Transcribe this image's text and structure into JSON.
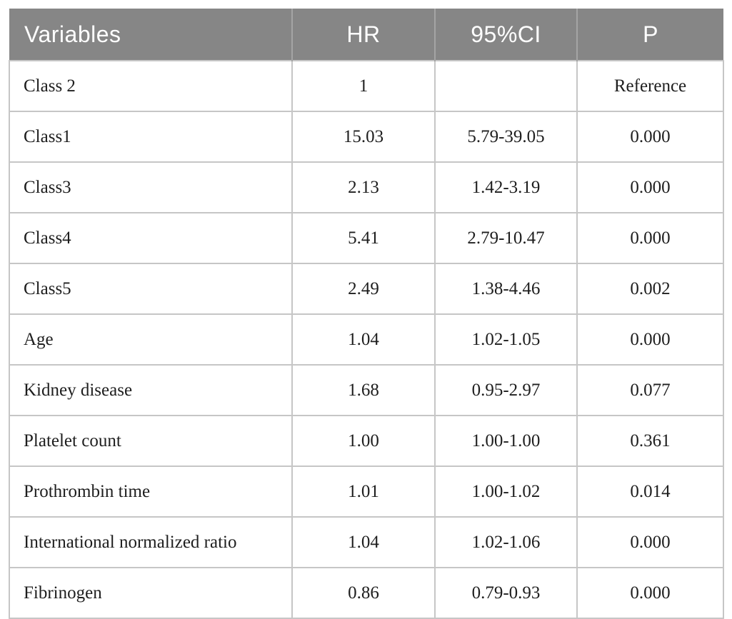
{
  "table": {
    "name": "cox-regression-results",
    "columns": [
      {
        "label": "Variables"
      },
      {
        "label": "HR"
      },
      {
        "label": "95%CI"
      },
      {
        "label": "P"
      }
    ],
    "rows": [
      {
        "variable": "Class 2",
        "hr": "1",
        "ci": "",
        "p": "Reference"
      },
      {
        "variable": "Class1",
        "hr": "15.03",
        "ci": "5.79-39.05",
        "p": "0.000"
      },
      {
        "variable": "Class3",
        "hr": "2.13",
        "ci": "1.42-3.19",
        "p": "0.000"
      },
      {
        "variable": "Class4",
        "hr": "5.41",
        "ci": "2.79-10.47",
        "p": "0.000"
      },
      {
        "variable": "Class5",
        "hr": "2.49",
        "ci": "1.38-4.46",
        "p": "0.002"
      },
      {
        "variable": "Age",
        "hr": "1.04",
        "ci": "1.02-1.05",
        "p": "0.000"
      },
      {
        "variable": "Kidney disease",
        "hr": "1.68",
        "ci": "0.95-2.97",
        "p": "0.077"
      },
      {
        "variable": "Platelet count",
        "hr": "1.00",
        "ci": "1.00-1.00",
        "p": "0.361"
      },
      {
        "variable": "Prothrombin time",
        "hr": "1.01",
        "ci": "1.00-1.02",
        "p": "0.014"
      },
      {
        "variable": "International normalized ratio",
        "hr": "1.04",
        "ci": "1.02-1.06",
        "p": "0.000"
      },
      {
        "variable": "Fibrinogen",
        "hr": "0.86",
        "ci": "0.79-0.93",
        "p": "0.000"
      }
    ]
  },
  "colors": {
    "header_bg": "#868686",
    "header_text": "#ffffff",
    "header_divider": "#a4a4a4",
    "body_text": "#1e1e1e",
    "grid_line": "#c6c6c6",
    "page_bg": "#ffffff"
  }
}
